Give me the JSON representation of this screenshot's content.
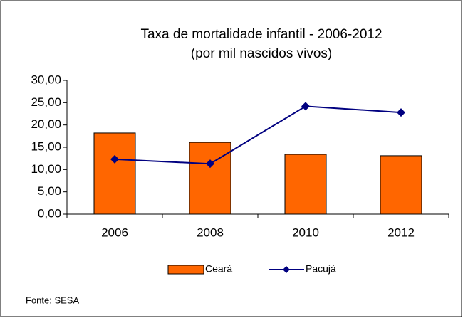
{
  "chart_data": {
    "type": "bar",
    "title": "Taxa de mortalidade infantil - 2006-2012",
    "subtitle": "(por mil nascidos vivos)",
    "categories": [
      "2006",
      "2008",
      "2010",
      "2012"
    ],
    "series": [
      {
        "name": "Ceará",
        "type": "bar",
        "color": "#ff6600",
        "values": [
          18.2,
          16.1,
          13.4,
          13.1
        ]
      },
      {
        "name": "Pacujá",
        "type": "line",
        "color": "#000080",
        "values": [
          12.3,
          11.3,
          24.2,
          22.8
        ]
      }
    ],
    "ylim": [
      0,
      30
    ],
    "yticks": [
      {
        "value": 0,
        "label": "0,00"
      },
      {
        "value": 5,
        "label": "5,00"
      },
      {
        "value": 10,
        "label": "10,00"
      },
      {
        "value": 15,
        "label": "15,00"
      },
      {
        "value": 20,
        "label": "20,00"
      },
      {
        "value": 25,
        "label": "25,00"
      },
      {
        "value": 30,
        "label": "30,00"
      }
    ],
    "grid": false,
    "legend": "bottom",
    "source": "Fonte: SESA"
  }
}
